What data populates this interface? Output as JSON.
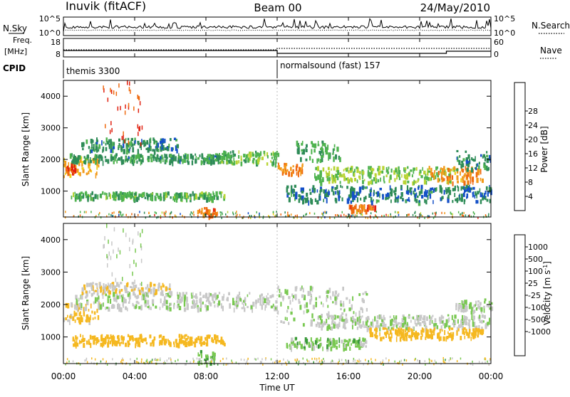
{
  "header": {
    "station": "Inuvik (fitACF)",
    "beam": "Beam 00",
    "date": "24/May/2010"
  },
  "top_panel": {
    "left_label": "N.Sky",
    "left_ticks": [
      "10^5",
      "10^0"
    ],
    "right_ticks": [
      "10^5",
      "10^0"
    ],
    "right_label": "N.Search"
  },
  "freq_panel": {
    "left_label_line1": "Freq.",
    "left_label_line2": "[MHz]",
    "left_ticks": [
      "18",
      "8"
    ],
    "right_ticks": [
      "60",
      "0"
    ],
    "right_label": "Nave"
  },
  "cpid": {
    "label": "CPID",
    "segments": [
      {
        "start_hour": 0,
        "text": "themis 3300"
      },
      {
        "start_hour": 12,
        "text": "normalsound (fast) 157"
      }
    ]
  },
  "colors": {
    "power": [
      "#1a1aff",
      "#1450c8",
      "#2e8b57",
      "#4fb34f",
      "#b8d434",
      "#f2d21a",
      "#f29a1a",
      "#ef6a10",
      "#e02010"
    ],
    "velocity": [
      "#ff1010",
      "#f05a00",
      "#f79a10",
      "#f5b820",
      "#c8c8c8",
      "#c8c8c8",
      "#78c850",
      "#3a9a3a",
      "#1c6ae0",
      "#1a2aa8"
    ]
  },
  "chart_data": [
    {
      "type": "heatmap",
      "name": "power",
      "title": "",
      "xlabel": "",
      "ylabel": "Slant Range [km]",
      "xlim": [
        0,
        24
      ],
      "ylim": [
        180,
        4500
      ],
      "yticks": [
        1000,
        2000,
        3000,
        4000
      ],
      "colorbar": {
        "label": "Power [dB]",
        "range": [
          0,
          32
        ],
        "ticks": [
          "4",
          "8",
          "12",
          "16",
          "20",
          "24",
          "28"
        ]
      },
      "bands": [
        {
          "hour_start": 0.0,
          "hour_end": 2.0,
          "range_start": 1500,
          "range_end": 2100,
          "value": 22
        },
        {
          "hour_start": 0.0,
          "hour_end": 0.6,
          "range_start": 1600,
          "range_end": 1900,
          "value": 29
        },
        {
          "hour_start": 0.3,
          "hour_end": 9.5,
          "range_start": 1950,
          "range_end": 2200,
          "value": 10
        },
        {
          "hour_start": 1.0,
          "hour_end": 6.5,
          "range_start": 2300,
          "range_end": 2700,
          "value": 9
        },
        {
          "hour_start": 0.4,
          "hour_end": 9.0,
          "range_start": 800,
          "range_end": 1000,
          "value": 12
        },
        {
          "hour_start": 7.5,
          "hour_end": 8.6,
          "range_start": 200,
          "range_end": 500,
          "value": 26
        },
        {
          "hour_start": 8.5,
          "hour_end": 12.0,
          "range_start": 1900,
          "range_end": 2300,
          "value": 13
        },
        {
          "hour_start": 12.0,
          "hour_end": 13.5,
          "range_start": 1600,
          "range_end": 1900,
          "value": 25
        },
        {
          "hour_start": 13.0,
          "hour_end": 15.5,
          "range_start": 2000,
          "range_end": 2600,
          "value": 11
        },
        {
          "hour_start": 14.0,
          "hour_end": 22.0,
          "range_start": 1300,
          "range_end": 1800,
          "value": 14
        },
        {
          "hour_start": 16.0,
          "hour_end": 17.5,
          "range_start": 400,
          "range_end": 600,
          "value": 27
        },
        {
          "hour_start": 20.5,
          "hour_end": 23.5,
          "range_start": 1300,
          "range_end": 1800,
          "value": 24
        },
        {
          "hour_start": 22.0,
          "hour_end": 24.0,
          "range_start": 1700,
          "range_end": 2300,
          "value": 9
        },
        {
          "hour_start": 12.5,
          "hour_end": 24.0,
          "range_start": 700,
          "range_end": 1200,
          "value": 8
        }
      ]
    },
    {
      "type": "heatmap",
      "name": "velocity",
      "title": "",
      "xlabel": "Time UT",
      "ylabel": "Slant Range [km]",
      "xlim": [
        0,
        24
      ],
      "ylim": [
        180,
        4500
      ],
      "yticks": [
        1000,
        2000,
        3000,
        4000
      ],
      "xticks": [
        "00:00",
        "04:00",
        "08:00",
        "12:00",
        "16:00",
        "20:00",
        "00:00"
      ],
      "colorbar": {
        "label": "Velocity [m s^-1]",
        "ticks": [
          "1000",
          "500",
          "100",
          "25",
          "-25",
          "-100",
          "-500",
          "-1000"
        ]
      },
      "bands": [
        {
          "hour_start": 0.0,
          "hour_end": 2.0,
          "range_start": 1500,
          "range_end": 2100,
          "value": -150
        },
        {
          "hour_start": 0.5,
          "hour_end": 12.0,
          "range_start": 1900,
          "range_end": 2400,
          "value": 0
        },
        {
          "hour_start": 1.0,
          "hour_end": 6.0,
          "range_start": 2400,
          "range_end": 2700,
          "value": -80
        },
        {
          "hour_start": 0.5,
          "hour_end": 9.0,
          "range_start": 800,
          "range_end": 1100,
          "value": -250
        },
        {
          "hour_start": 7.5,
          "hour_end": 8.5,
          "range_start": 200,
          "range_end": 600,
          "value": 80
        },
        {
          "hour_start": 12.0,
          "hour_end": 17.0,
          "range_start": 1400,
          "range_end": 2600,
          "value": 0
        },
        {
          "hour_start": 14.0,
          "hour_end": 24.0,
          "range_start": 1300,
          "range_end": 1700,
          "value": 0
        },
        {
          "hour_start": 17.0,
          "hour_end": 23.5,
          "range_start": 1000,
          "range_end": 1300,
          "value": -300
        },
        {
          "hour_start": 12.5,
          "hour_end": 17.0,
          "range_start": 700,
          "range_end": 1000,
          "value": 60
        },
        {
          "hour_start": 22.0,
          "hour_end": 24.0,
          "range_start": 1800,
          "range_end": 2200,
          "value": 0
        }
      ]
    }
  ]
}
